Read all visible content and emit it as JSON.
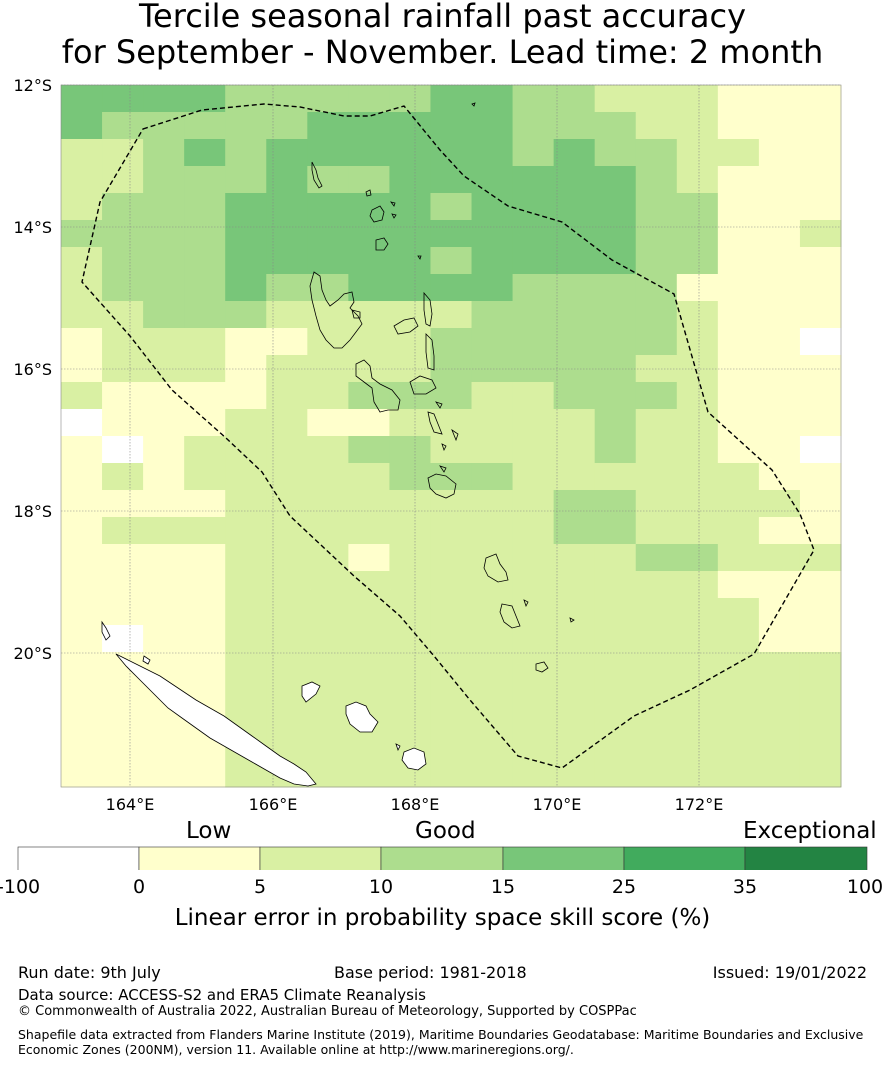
{
  "title": {
    "line1": "Tercile seasonal rainfall past accuracy",
    "line2": "for September - November. Lead time: 2 month"
  },
  "map": {
    "lat_labels": [
      "12°S",
      "14°S",
      "16°S",
      "18°S",
      "20°S"
    ],
    "lon_labels": [
      "164°E",
      "166°E",
      "168°E",
      "170°E",
      "172°E"
    ],
    "lon_range": [
      163,
      174
    ],
    "lat_range": [
      -21.9,
      -12
    ]
  },
  "colorbar": {
    "categories": {
      "low": "Low",
      "good": "Good",
      "exceptional": "Exceptional"
    },
    "ticks": [
      "-100",
      "0",
      "5",
      "10",
      "15",
      "25",
      "35",
      "100"
    ],
    "colors": [
      "#ffffff",
      "#ffffcc",
      "#d9f0a3",
      "#addd8e",
      "#78c679",
      "#41ab5d",
      "#238443"
    ],
    "title": "Linear error in probability space skill score (%)"
  },
  "footer": {
    "run_date": "Run date: 9th July",
    "base_period": "Base period: 1981-2018",
    "issued": "Issued: 19/01/2022",
    "data_source": "Data source: ACCESS-S2 and ERA5 Climate Reanalysis",
    "copyright": "© Commonwealth of Australia 2022, Australian Bureau of Meteorology, Supported by COSPPac",
    "shapefile_line1": "Shapefile data extracted from Flanders Marine Institute (2019), Maritime Boundaries Geodatabase: Maritime Boundaries and Exclusive",
    "shapefile_line2": "Economic Zones (200NM), version 11. Available online at http://www.marineregions.org/."
  }
}
